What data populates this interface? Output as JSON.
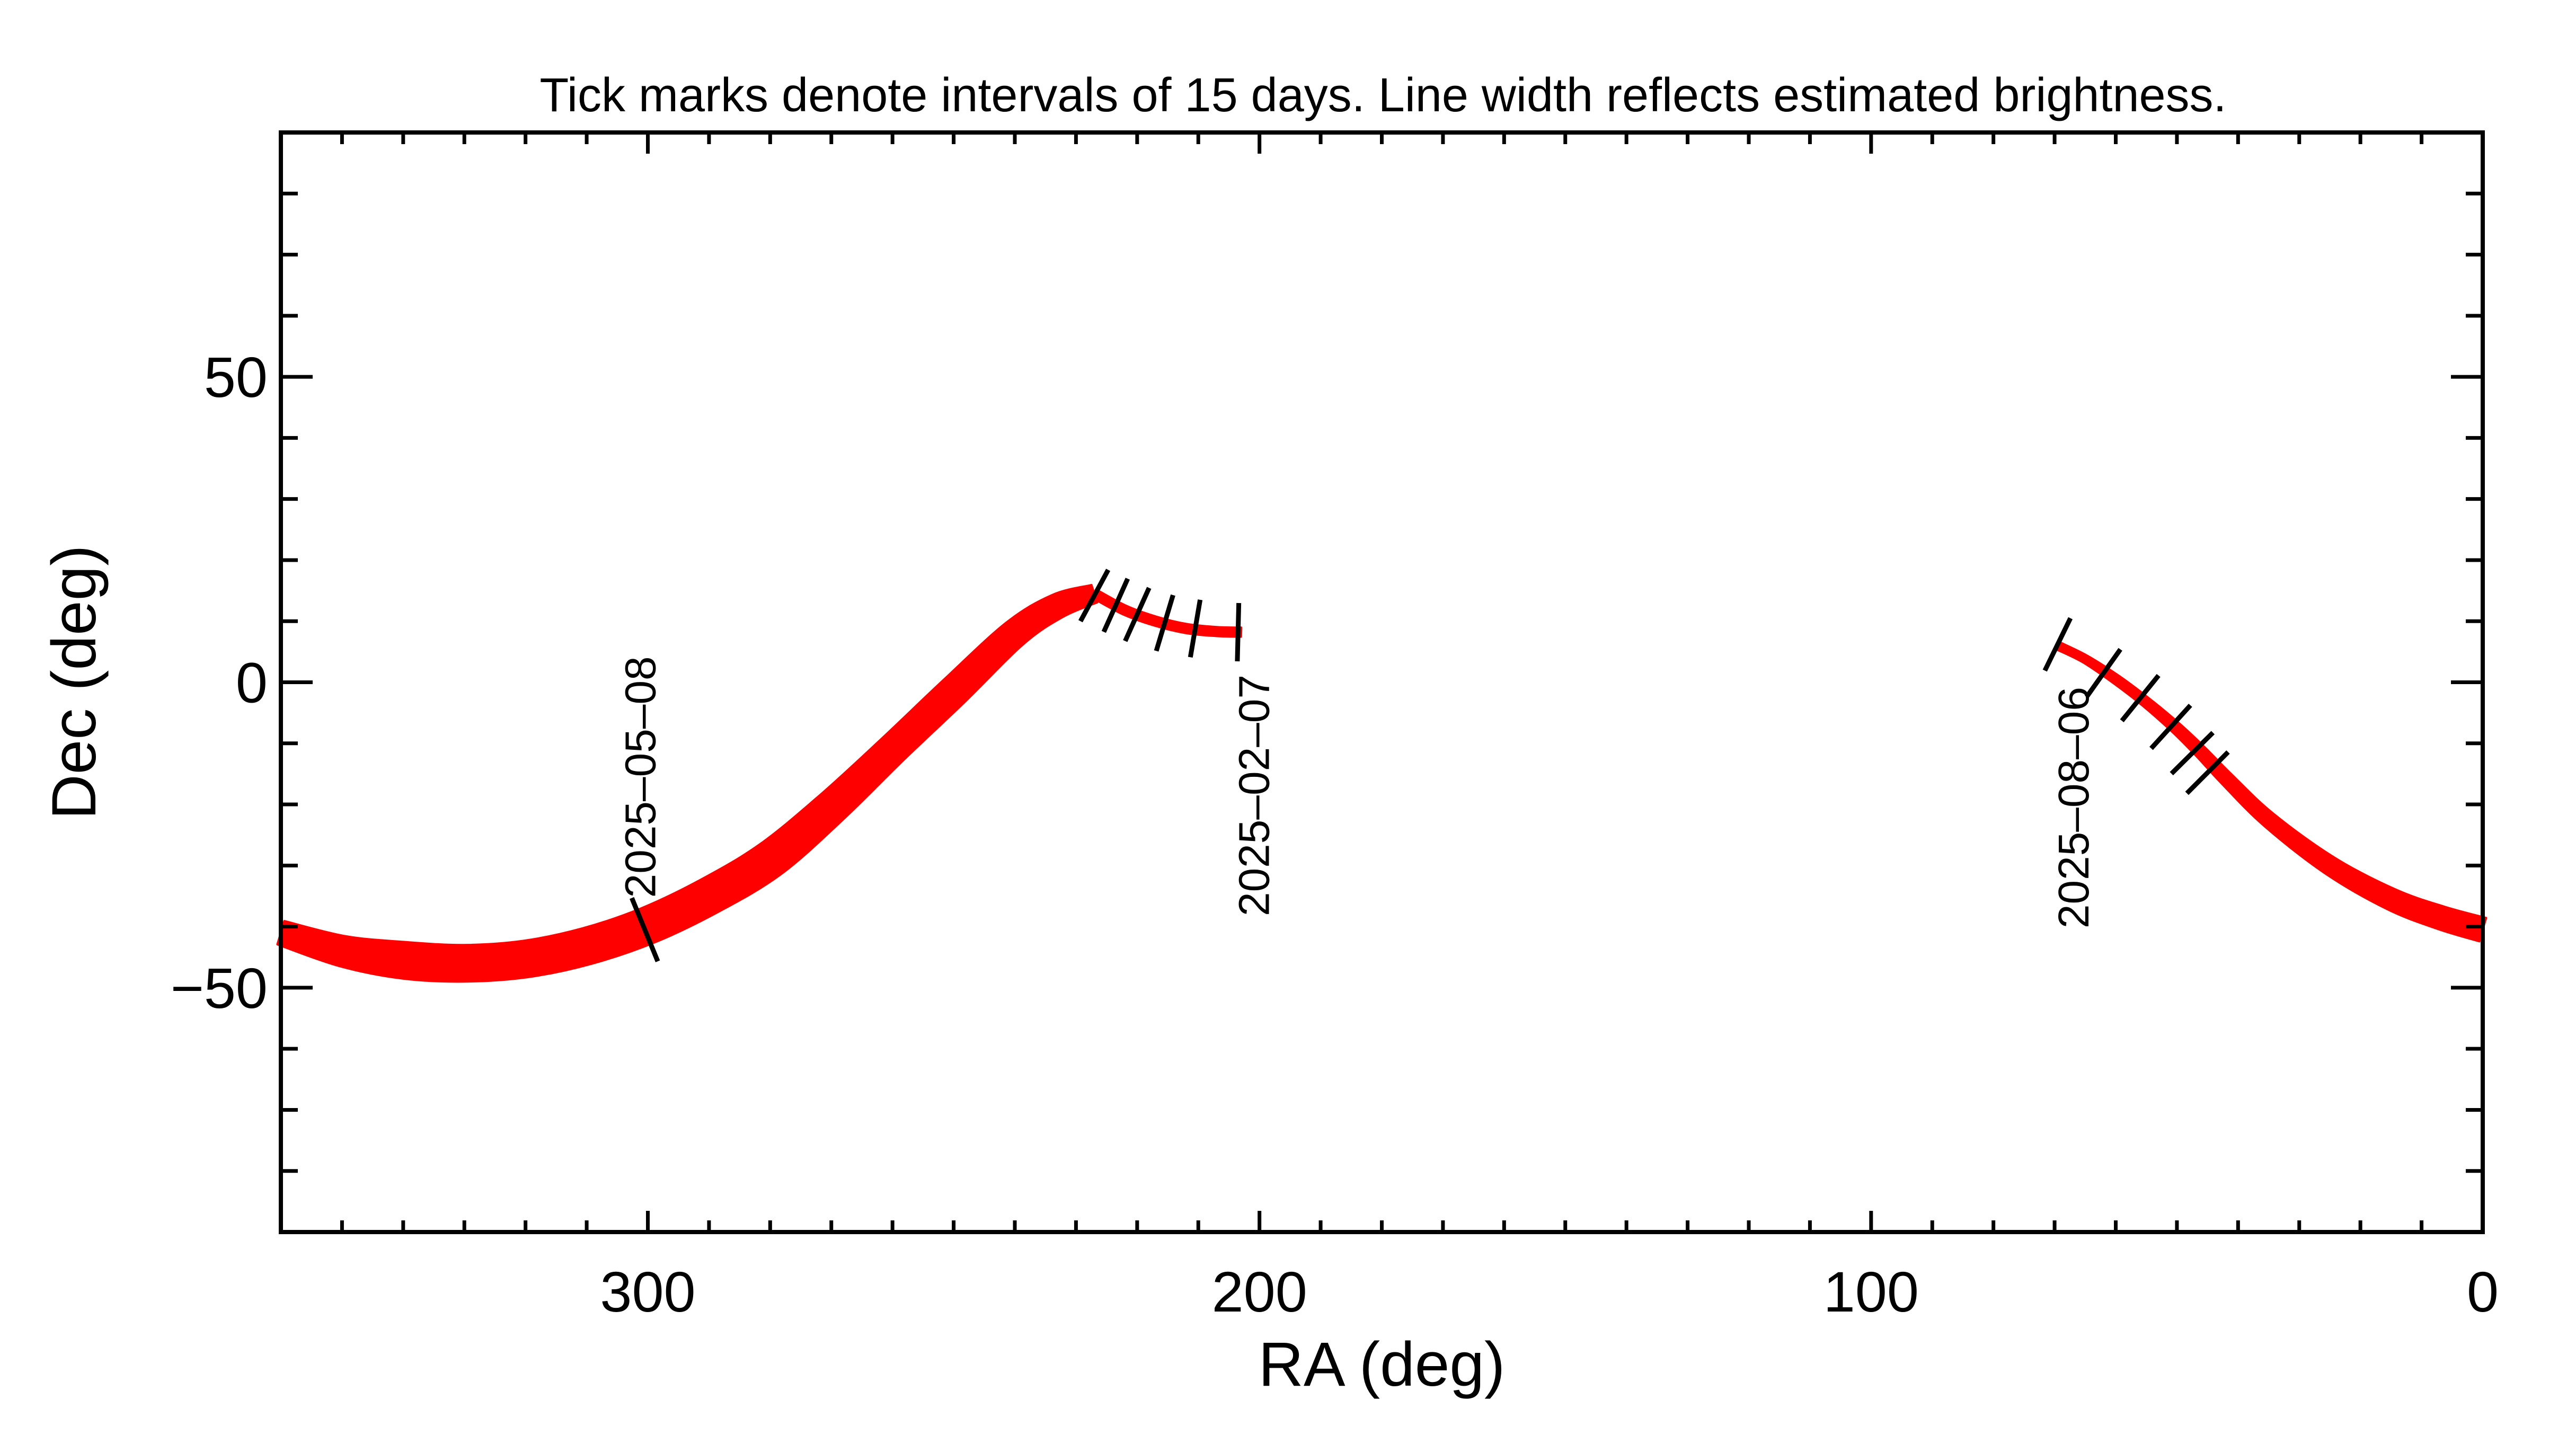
{
  "chart_data": {
    "type": "line",
    "title": "Tick marks denote intervals of 15 days.  Line width reflects estimated brightness.",
    "xlabel": "RA (deg)",
    "ylabel": "Dec (deg)",
    "xlim": [
      360,
      0
    ],
    "ylim": [
      -90,
      90
    ],
    "x_ticks": [
      300,
      200,
      100,
      0
    ],
    "y_ticks": [
      50,
      0,
      -50
    ],
    "y_tick_labels": [
      "50",
      "0",
      "−50"
    ],
    "grid": false,
    "line_color": "#ff0000",
    "tick_mark_color": "#000000",
    "series": [
      {
        "name": "track-1",
        "width_note": "thick (brighter)",
        "ra": [
          360,
          350,
          340,
          330,
          320,
          310,
          300,
          290,
          280,
          270,
          260,
          250,
          240,
          233,
          227
        ],
        "dec": [
          -41,
          -44,
          -45.5,
          -46,
          -45.3,
          -43.2,
          -39.8,
          -35,
          -29,
          -20.5,
          -11,
          -1.5,
          8,
          12.5,
          14.5
        ],
        "width_deg": [
          4,
          5,
          6,
          6,
          6,
          6,
          6,
          6,
          6,
          5.5,
          5,
          5,
          4.5,
          4,
          3
        ],
        "tick_marks": [
          {
            "ra": 300.5,
            "dec": -40.5
          }
        ],
        "date_labels": [
          {
            "text": "2025–05–08",
            "ra": 300.5,
            "dec": -40.5
          }
        ]
      },
      {
        "name": "track-2",
        "width_note": "thin",
        "ra": [
          227,
          222,
          217,
          212,
          207,
          203
        ],
        "dec": [
          14.5,
          11.8,
          10.0,
          8.8,
          8.3,
          8.2
        ],
        "width_deg": [
          1.5,
          1.5,
          1.5,
          1.5,
          1.5,
          1.5
        ],
        "tick_marks": [
          {
            "ra": 227,
            "dec": 14.2
          },
          {
            "ra": 223.5,
            "dec": 12.6
          },
          {
            "ra": 220,
            "dec": 11.1
          },
          {
            "ra": 215.5,
            "dec": 9.7
          },
          {
            "ra": 210.5,
            "dec": 8.8
          },
          {
            "ra": 203.5,
            "dec": 8.2
          }
        ],
        "date_labels": [
          {
            "text": "2025–02–07",
            "ra": 203.5,
            "dec": 8.2
          }
        ]
      },
      {
        "name": "track-3",
        "width_note": "medium",
        "ra": [
          69.5,
          65,
          60,
          55,
          50,
          46,
          42,
          35,
          25,
          15,
          7,
          0
        ],
        "dec": [
          6,
          3.8,
          0.5,
          -3.3,
          -7.6,
          -11.5,
          -15.7,
          -22.5,
          -30,
          -35.5,
          -38.5,
          -40.5
        ],
        "width_deg": [
          1.3,
          1.3,
          1.5,
          1.6,
          1.8,
          2,
          2.2,
          2.5,
          3,
          3.5,
          3.8,
          4
        ],
        "tick_marks": [
          {
            "ra": 69.5,
            "dec": 6.2
          },
          {
            "ra": 62,
            "dec": 1.5
          },
          {
            "ra": 56,
            "dec": -2.6
          },
          {
            "ra": 51,
            "dec": -7.3
          },
          {
            "ra": 47.5,
            "dec": -11.6
          },
          {
            "ra": 45,
            "dec": -14.8
          }
        ],
        "date_labels": [
          {
            "text": "2025–08–06",
            "ra": 69.5,
            "dec": 6.2
          }
        ]
      }
    ]
  }
}
